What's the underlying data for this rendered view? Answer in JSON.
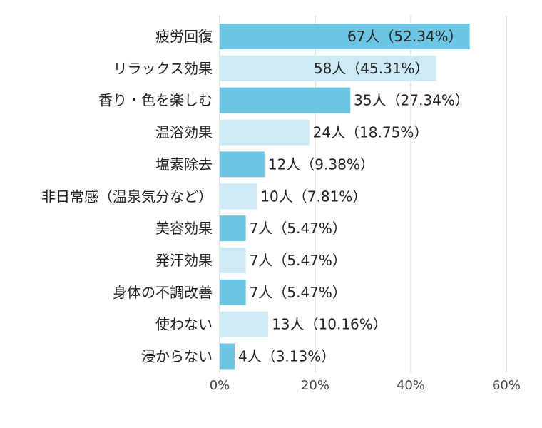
{
  "chart_data": {
    "type": "bar",
    "orientation": "horizontal",
    "categories": [
      "疲労回復",
      "リラックス効果",
      "香り・色を楽しむ",
      "温浴効果",
      "塩素除去",
      "非日常感（温泉気分など）",
      "美容効果",
      "発汗効果",
      "身体の不調改善",
      "使わない",
      "浸からない"
    ],
    "values": [
      52.34,
      45.31,
      27.34,
      18.75,
      9.38,
      7.81,
      5.47,
      5.47,
      5.47,
      10.16,
      3.13
    ],
    "data_labels": [
      "67人（52.34%）",
      "58人（45.31%）",
      "35人（27.34%）",
      "24人（18.75%）",
      "12人（9.38%）",
      "10人（7.81%）",
      "7人（5.47%）",
      "7人（5.47%）",
      "7人（5.47%）",
      "13人（10.16%）",
      "4人（3.13%）"
    ],
    "x_ticks": [
      "0%",
      "20%",
      "40%",
      "60%"
    ],
    "x_tick_values": [
      0,
      20,
      40,
      60
    ],
    "xlim": [
      0,
      60
    ],
    "grid": true,
    "colors": {
      "dark_bar": "#6cc5e3",
      "light_bar": "#cdeaf5",
      "grid": "#d9d9d9",
      "text": "#222222"
    }
  }
}
